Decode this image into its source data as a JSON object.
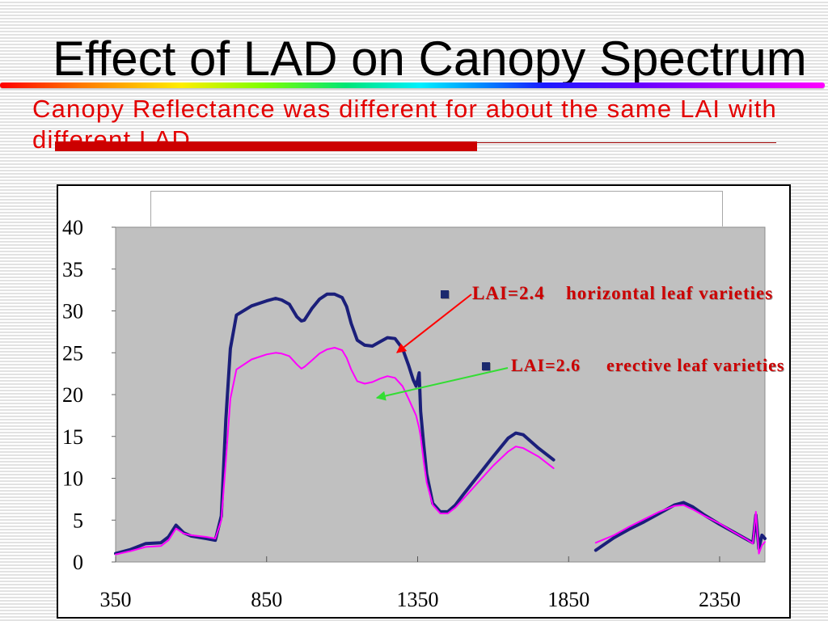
{
  "slide": {
    "title": "Effect of LAD on Canopy Spectrum",
    "subtitle": "Canopy Reflectance was different for about the same LAI with different LAD"
  },
  "colors": {
    "subtitle": "#e30000",
    "accent_bar": "#cc0000",
    "plot_background": "#c0c0c0",
    "annotation_text": "#cc0000",
    "arrow_horizontal": "#ff0000",
    "arrow_erective": "#33dd33"
  },
  "chart_data": {
    "type": "line",
    "xlim": [
      350,
      2500
    ],
    "ylim": [
      0,
      40
    ],
    "x_ticks": [
      350,
      850,
      1350,
      1850,
      2350
    ],
    "y_ticks": [
      0,
      5,
      10,
      15,
      20,
      25,
      30,
      35,
      40
    ],
    "grid": false,
    "legend": "top-right",
    "x": [
      350,
      400,
      450,
      500,
      525,
      550,
      575,
      600,
      650,
      680,
      700,
      715,
      730,
      750,
      800,
      850,
      880,
      900,
      925,
      950,
      965,
      975,
      1000,
      1025,
      1050,
      1075,
      1100,
      1115,
      1130,
      1150,
      1175,
      1200,
      1225,
      1250,
      1275,
      1300,
      1320,
      1335,
      1345,
      1355,
      1360,
      1370,
      1380,
      1400,
      1425,
      1450,
      1475,
      1500,
      1550,
      1600,
      1650,
      1675,
      1700,
      1750,
      1800,
      1850,
      1940,
      2000,
      2050,
      2100,
      2150,
      2200,
      2230,
      2260,
      2300,
      2350,
      2400,
      2440,
      2460,
      2470,
      2480,
      2490,
      2500
    ],
    "series": [
      {
        "name": "LAI=2.4",
        "label": "horizontal leaf varieties",
        "color": "#1b1f7a",
        "values": [
          1.0,
          1.5,
          2.2,
          2.3,
          3.0,
          4.4,
          3.5,
          3.1,
          2.8,
          2.6,
          5.5,
          17.0,
          25.5,
          29.5,
          30.6,
          31.2,
          31.5,
          31.3,
          30.8,
          29.3,
          28.8,
          28.9,
          30.3,
          31.4,
          32.0,
          32.0,
          31.6,
          30.5,
          28.5,
          26.5,
          25.9,
          25.8,
          26.3,
          26.8,
          26.7,
          25.5,
          23.5,
          21.8,
          21.0,
          22.6,
          18.0,
          14.0,
          10.5,
          7.0,
          6.0,
          6.0,
          6.8,
          8.0,
          10.3,
          12.6,
          14.8,
          15.4,
          15.2,
          13.6,
          12.2,
          null,
          1.4,
          2.9,
          3.9,
          4.8,
          5.8,
          6.8,
          7.1,
          6.6,
          5.6,
          4.5,
          3.5,
          2.7,
          2.3,
          5.6,
          1.6,
          3.2,
          2.8
        ]
      },
      {
        "name": "LAI=2.6",
        "label": "erective leaf varieties",
        "color": "#ff00ff",
        "values": [
          0.9,
          1.3,
          1.8,
          1.9,
          2.6,
          4.0,
          3.4,
          3.2,
          3.0,
          2.8,
          5.0,
          12.0,
          19.5,
          23.0,
          24.2,
          24.8,
          25.0,
          24.9,
          24.6,
          23.6,
          23.1,
          23.3,
          24.1,
          24.9,
          25.4,
          25.6,
          25.3,
          24.4,
          23.0,
          21.6,
          21.3,
          21.5,
          21.9,
          22.2,
          22.0,
          21.0,
          19.5,
          18.3,
          17.5,
          16.0,
          15.0,
          12.0,
          9.5,
          6.8,
          5.8,
          5.8,
          6.5,
          7.5,
          9.5,
          11.5,
          13.2,
          13.8,
          13.6,
          12.6,
          11.2,
          null,
          2.3,
          3.2,
          4.2,
          5.1,
          6.0,
          6.7,
          6.8,
          6.3,
          5.5,
          4.6,
          3.5,
          2.7,
          2.2,
          6.0,
          1.0,
          2.0,
          2.4
        ]
      }
    ]
  }
}
